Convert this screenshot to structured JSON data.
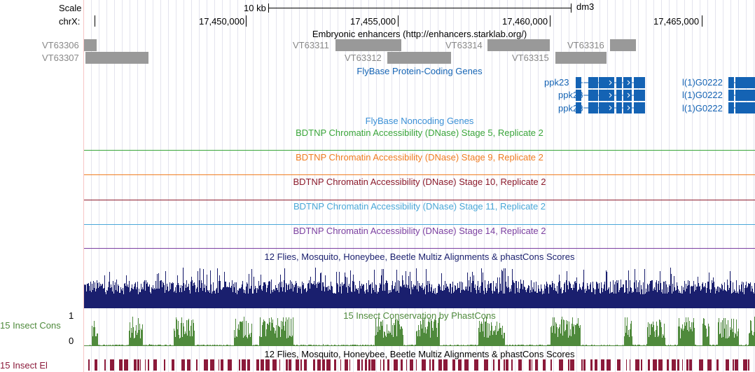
{
  "ruler": {
    "scale_label": "Scale",
    "chrom_label": "chrX:",
    "scale_bar_label": "10 kb",
    "assembly": "dm3",
    "ticks": [
      "17,450,000",
      "17,455,000",
      "17,460,000",
      "17,465,000"
    ]
  },
  "enhancers": {
    "title": "Embryonic enhancers (http://enhancers.starklab.org/)",
    "items": [
      "VT63306",
      "VT63307",
      "VT63311",
      "VT63312",
      "VT63314",
      "VT63315",
      "VT63316"
    ]
  },
  "genes": {
    "title": "FlyBase Protein-Coding Genes",
    "left_labels": [
      "ppk23",
      "ppk23",
      "ppk23"
    ],
    "right_labels": [
      "l(1)G0222",
      "l(1)G0222",
      "l(1)G0222"
    ]
  },
  "noncoding": {
    "title": "FlyBase Noncoding Genes"
  },
  "dnase_tracks": [
    {
      "title": "BDTNP Chromatin Accessibility (DNase) Stage 5, Replicate 2",
      "color": "#3aa53a"
    },
    {
      "title": "BDTNP Chromatin Accessibility (DNase) Stage 9, Replicate 2",
      "color": "#f07d22"
    },
    {
      "title": "BDTNP Chromatin Accessibility (DNase) Stage 10, Replicate 2",
      "color": "#8b1a2b"
    },
    {
      "title": "BDTNP Chromatin Accessibility (DNase) Stage 11, Replicate 2",
      "color": "#4aa8d8"
    },
    {
      "title": "BDTNP Chromatin Accessibility (DNase) Stage 14, Replicate 2",
      "color": "#7b3fa0"
    }
  ],
  "multiz": {
    "title": "12 Flies, Mosquito, Honeybee, Beetle Multiz Alignments & phastCons Scores",
    "color": "#1a1f6e"
  },
  "phastcons": {
    "title": "15 Insect Conservation by PhastCons",
    "side_label": "15 Insect Cons",
    "max_label": "1",
    "min_label": "0",
    "color": "#4f8a3c"
  },
  "elements": {
    "title": "12 Flies, Mosquito, Honeybee, Beetle Multiz Alignments & phastCons Scores",
    "side_label": "15 Insect El",
    "color": "#8b1a3a"
  },
  "colors": {
    "gene_blue": "#1463b4",
    "enhancer_gray": "#999999",
    "grid": "#e4e4ee"
  }
}
